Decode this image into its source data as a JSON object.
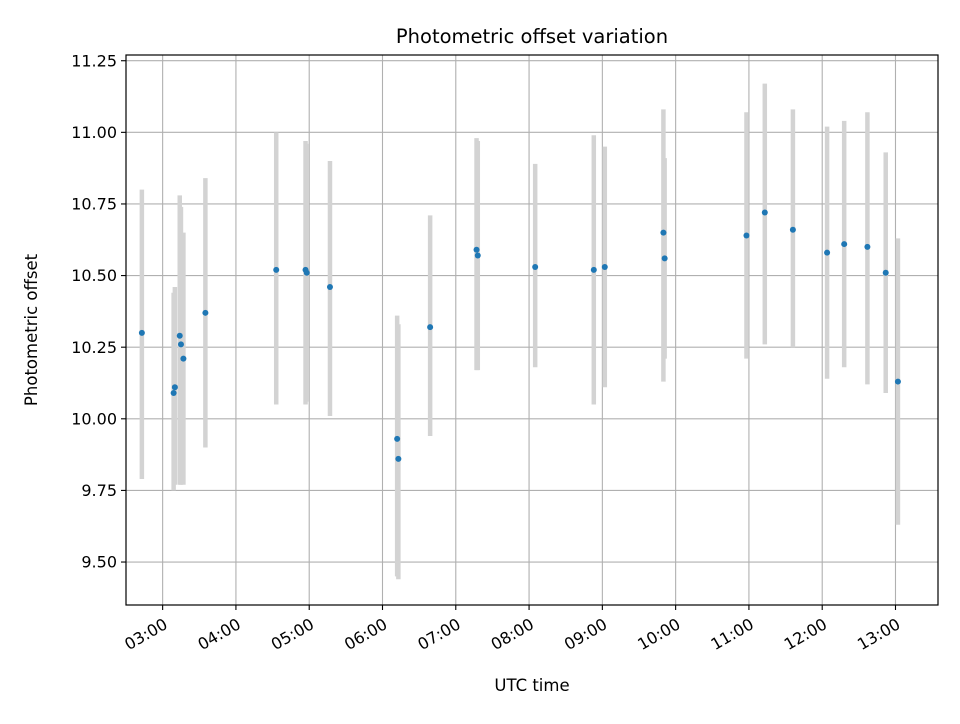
{
  "chart_data": {
    "type": "scatter",
    "title": "Photometric offset variation",
    "xlabel": "UTC time",
    "ylabel": "Photometric offset",
    "x_tick_labels": [
      "03:00",
      "04:00",
      "05:00",
      "06:00",
      "07:00",
      "08:00",
      "09:00",
      "10:00",
      "11:00",
      "12:00",
      "13:00"
    ],
    "x_ticks_hours": [
      3,
      4,
      5,
      6,
      7,
      8,
      9,
      10,
      11,
      12,
      13
    ],
    "xlim_hours": [
      2.5,
      13.58
    ],
    "y_ticks": [
      9.5,
      9.75,
      10.0,
      10.25,
      10.5,
      10.75,
      11.0,
      11.25
    ],
    "y_tick_labels": [
      "9.50",
      "9.75",
      "10.00",
      "10.25",
      "10.50",
      "10.75",
      "11.00",
      "11.25"
    ],
    "ylim": [
      9.35,
      11.27
    ],
    "grid": true,
    "colors": {
      "point": "#1f77b4",
      "error_bar": "#d3d3d3",
      "grid": "#b0b0b0",
      "axes": "#000000"
    },
    "series": [
      {
        "points": [
          {
            "time": "02:43",
            "offset": 10.3,
            "lower": 9.79,
            "upper": 10.8
          },
          {
            "time": "03:09",
            "offset": 10.09,
            "lower": 9.75,
            "upper": 10.44
          },
          {
            "time": "03:10",
            "offset": 10.11,
            "lower": 9.77,
            "upper": 10.46
          },
          {
            "time": "03:14",
            "offset": 10.29,
            "lower": 9.77,
            "upper": 10.78
          },
          {
            "time": "03:15",
            "offset": 10.26,
            "lower": 9.77,
            "upper": 10.74
          },
          {
            "time": "03:17",
            "offset": 10.21,
            "lower": 9.77,
            "upper": 10.65
          },
          {
            "time": "03:35",
            "offset": 10.37,
            "lower": 9.9,
            "upper": 10.84
          },
          {
            "time": "04:33",
            "offset": 10.52,
            "lower": 10.05,
            "upper": 11.0
          },
          {
            "time": "04:57",
            "offset": 10.52,
            "lower": 10.05,
            "upper": 10.97
          },
          {
            "time": "04:58",
            "offset": 10.51,
            "lower": 10.06,
            "upper": 10.96
          },
          {
            "time": "05:17",
            "offset": 10.46,
            "lower": 10.01,
            "upper": 10.9
          },
          {
            "time": "06:12",
            "offset": 9.93,
            "lower": 9.45,
            "upper": 10.36
          },
          {
            "time": "06:13",
            "offset": 9.86,
            "lower": 9.44,
            "upper": 10.33
          },
          {
            "time": "06:39",
            "offset": 10.32,
            "lower": 9.94,
            "upper": 10.71
          },
          {
            "time": "07:17",
            "offset": 10.59,
            "lower": 10.17,
            "upper": 10.98
          },
          {
            "time": "07:18",
            "offset": 10.57,
            "lower": 10.17,
            "upper": 10.97
          },
          {
            "time": "08:05",
            "offset": 10.53,
            "lower": 10.18,
            "upper": 10.89
          },
          {
            "time": "08:53",
            "offset": 10.52,
            "lower": 10.05,
            "upper": 10.99
          },
          {
            "time": "09:02",
            "offset": 10.53,
            "lower": 10.11,
            "upper": 10.95
          },
          {
            "time": "09:50",
            "offset": 10.65,
            "lower": 10.13,
            "upper": 11.08
          },
          {
            "time": "09:51",
            "offset": 10.56,
            "lower": 10.21,
            "upper": 10.91
          },
          {
            "time": "10:58",
            "offset": 10.64,
            "lower": 10.21,
            "upper": 11.07
          },
          {
            "time": "11:13",
            "offset": 10.72,
            "lower": 10.26,
            "upper": 11.17
          },
          {
            "time": "11:36",
            "offset": 10.66,
            "lower": 10.25,
            "upper": 11.08
          },
          {
            "time": "12:04",
            "offset": 10.58,
            "lower": 10.14,
            "upper": 11.02
          },
          {
            "time": "12:18",
            "offset": 10.61,
            "lower": 10.18,
            "upper": 11.04
          },
          {
            "time": "12:37",
            "offset": 10.6,
            "lower": 10.12,
            "upper": 11.07
          },
          {
            "time": "12:52",
            "offset": 10.51,
            "lower": 10.09,
            "upper": 10.93
          },
          {
            "time": "13:02",
            "offset": 10.13,
            "lower": 9.63,
            "upper": 10.63
          }
        ]
      }
    ]
  }
}
